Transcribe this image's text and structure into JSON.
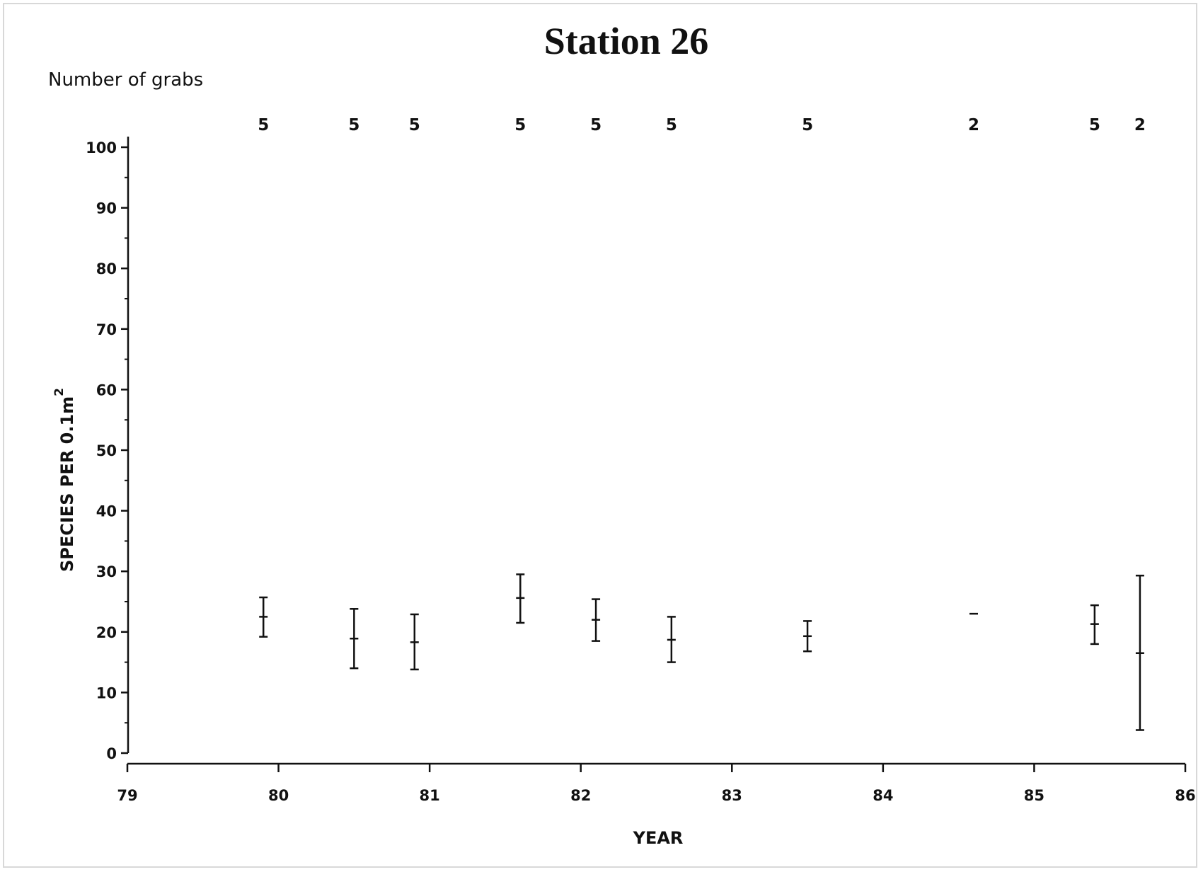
{
  "chart_data": {
    "type": "errorbar",
    "title": "Station 26",
    "annotation_label": "Number of grabs",
    "xlabel": "YEAR",
    "ylabel": "SPECIES PER 0.1m",
    "ylabel_superscript": "2",
    "xlim": [
      79,
      86
    ],
    "ylim": [
      0,
      100
    ],
    "x_ticks": [
      79,
      80,
      81,
      82,
      83,
      84,
      85,
      86
    ],
    "y_ticks": [
      0,
      10,
      20,
      30,
      40,
      50,
      60,
      70,
      80,
      90,
      100
    ],
    "points": [
      {
        "x": 79.9,
        "mean": 22.5,
        "low": 19.2,
        "high": 25.7,
        "grabs": 5
      },
      {
        "x": 80.5,
        "mean": 18.9,
        "low": 14.0,
        "high": 23.8,
        "grabs": 5
      },
      {
        "x": 80.9,
        "mean": 18.3,
        "low": 13.8,
        "high": 22.9,
        "grabs": 5
      },
      {
        "x": 81.6,
        "mean": 25.6,
        "low": 21.5,
        "high": 29.5,
        "grabs": 5
      },
      {
        "x": 82.1,
        "mean": 22.0,
        "low": 18.5,
        "high": 25.4,
        "grabs": 5
      },
      {
        "x": 82.6,
        "mean": 18.7,
        "low": 15.0,
        "high": 22.5,
        "grabs": 5
      },
      {
        "x": 83.5,
        "mean": 19.3,
        "low": 16.8,
        "high": 21.8,
        "grabs": 5
      },
      {
        "x": 84.6,
        "mean": 23.0,
        "low": 23.0,
        "high": 23.0,
        "grabs": 2
      },
      {
        "x": 85.4,
        "mean": 21.3,
        "low": 18.0,
        "high": 24.4,
        "grabs": 5
      },
      {
        "x": 85.7,
        "mean": 16.5,
        "low": 3.8,
        "high": 29.3,
        "grabs": 2
      }
    ],
    "colors": {
      "ink": "#111111",
      "frame": "#d8d8d8"
    }
  }
}
